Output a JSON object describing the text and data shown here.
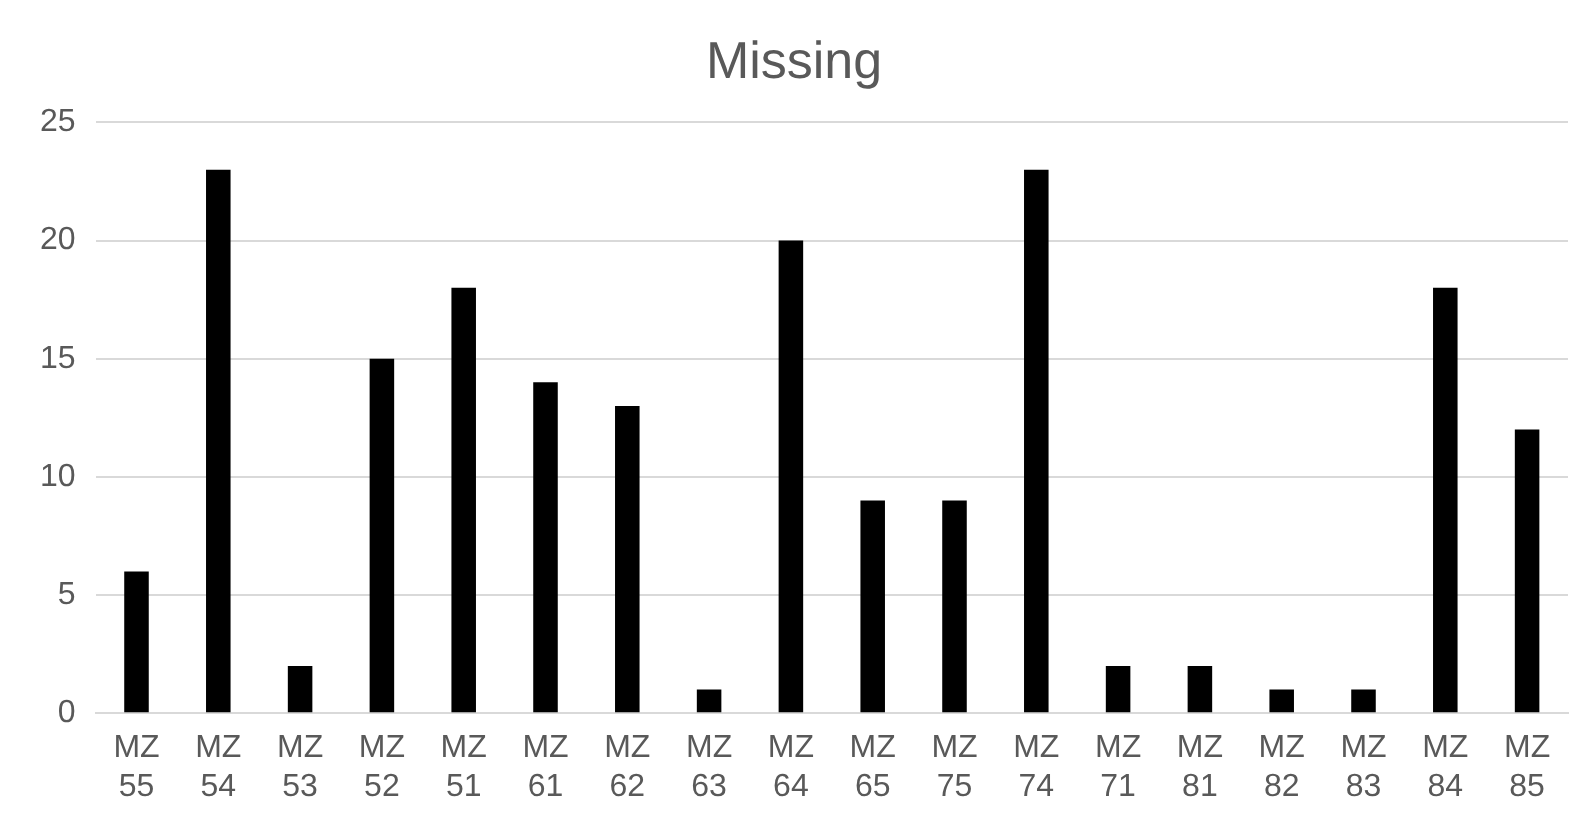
{
  "chart_data": {
    "type": "bar",
    "title": "Missing",
    "categories": [
      "MZ 55",
      "MZ 54",
      "MZ 53",
      "MZ 52",
      "MZ 51",
      "MZ 61",
      "MZ 62",
      "MZ 63",
      "MZ 64",
      "MZ 65",
      "MZ 75",
      "MZ 74",
      "MZ 71",
      "MZ 81",
      "MZ 82",
      "MZ 83",
      "MZ 84",
      "MZ 85"
    ],
    "values": [
      6,
      23,
      2,
      15,
      18,
      14,
      13,
      1,
      20,
      9,
      9,
      23,
      2,
      2,
      1,
      1,
      18,
      12
    ],
    "color": "#000000",
    "ylim": [
      0,
      25
    ],
    "yticks": [
      0,
      5,
      10,
      15,
      20,
      25
    ],
    "grid": "y",
    "legend": false
  }
}
